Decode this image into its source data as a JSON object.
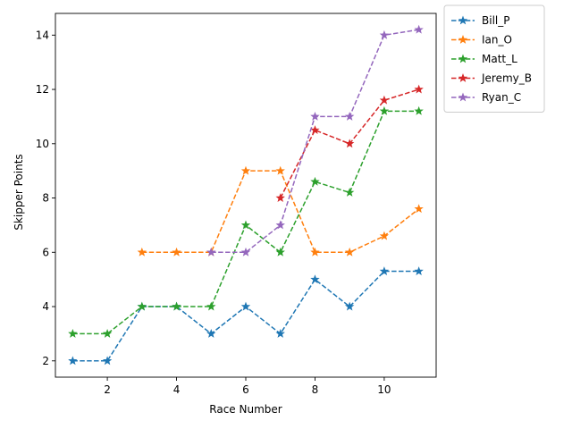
{
  "chart_data": {
    "type": "line",
    "title": "",
    "xlabel": "Race Number",
    "ylabel": "Skipper Points",
    "xlim": [
      0.5,
      11.5
    ],
    "ylim": [
      1.4,
      14.8
    ],
    "xticks": [
      2,
      4,
      6,
      8,
      10
    ],
    "yticks": [
      2,
      4,
      6,
      8,
      10,
      12,
      14
    ],
    "grid": false,
    "legend_position": "outside-right-top",
    "line_style": "dashed",
    "marker": "star",
    "series": [
      {
        "name": "Bill_P",
        "color": "#1f77b4",
        "x": [
          1,
          2,
          3,
          4,
          5,
          6,
          7,
          8,
          9,
          10,
          11
        ],
        "y": [
          2,
          2,
          4,
          4,
          3,
          4,
          3,
          5,
          4,
          5.3,
          5.3
        ]
      },
      {
        "name": "Ian_O",
        "color": "#ff7f0e",
        "x": [
          3,
          4,
          5,
          6,
          7,
          8,
          9,
          10,
          11
        ],
        "y": [
          6,
          6,
          6,
          9,
          9,
          6,
          6,
          6.6,
          7.6
        ]
      },
      {
        "name": "Matt_L",
        "color": "#2ca02c",
        "x": [
          1,
          2,
          3,
          4,
          5,
          6,
          7,
          8,
          9,
          10,
          11
        ],
        "y": [
          3,
          3,
          4,
          4,
          4,
          7,
          6,
          8.6,
          8.2,
          11.2,
          11.2
        ]
      },
      {
        "name": "Jeremy_B",
        "color": "#d62728",
        "x": [
          7,
          8,
          9,
          10,
          11
        ],
        "y": [
          8,
          10.5,
          10,
          11.6,
          12
        ]
      },
      {
        "name": "Ryan_C",
        "color": "#9467bd",
        "x": [
          5,
          6,
          7,
          8,
          9,
          10,
          11
        ],
        "y": [
          6,
          6,
          7,
          11,
          11,
          14,
          14.2
        ]
      }
    ]
  }
}
